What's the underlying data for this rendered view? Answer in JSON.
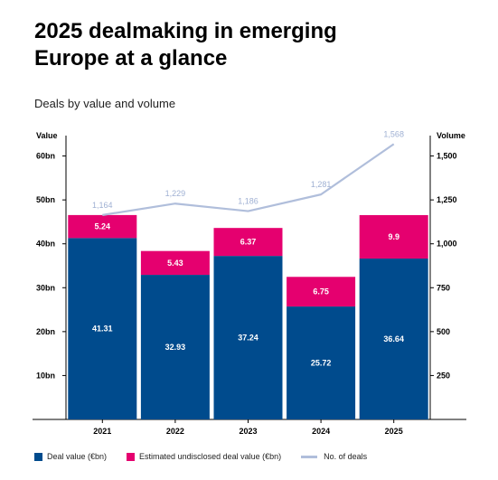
{
  "title_lines": [
    "2025 dealmaking in emerging",
    "Europe at a glance"
  ],
  "subtitle": "Deals by value and volume",
  "colors": {
    "deal_value": "#004b8d",
    "undisclosed": "#e5006f",
    "deals": "#b0bedb",
    "grid": "#000000"
  },
  "chart_data": {
    "type": "bar",
    "stacked": true,
    "categories": [
      "2021",
      "2022",
      "2023",
      "2024",
      "2025"
    ],
    "series": [
      {
        "name": "Deal value (€bn)",
        "values": [
          41.31,
          32.93,
          37.24,
          25.72,
          36.64
        ]
      },
      {
        "name": "Estimated undisclosed deal value (€bn)",
        "values": [
          5.24,
          5.43,
          6.37,
          6.75,
          9.9
        ]
      }
    ],
    "line_series": {
      "name": "No. of deals",
      "axis": "right",
      "values": [
        1164,
        1229,
        1186,
        1281,
        1568
      ],
      "labels": [
        "1,164",
        "1,229",
        "1,186",
        "1,281",
        "1,568"
      ]
    },
    "y_left": {
      "label": "Value",
      "ticks": [
        10,
        20,
        30,
        40,
        50,
        60
      ],
      "tick_labels": [
        "10bn",
        "20bn",
        "30bn",
        "40bn",
        "50bn",
        "60bn"
      ],
      "range": [
        0,
        63
      ]
    },
    "y_right": {
      "label": "Volume",
      "ticks": [
        250,
        500,
        750,
        1000,
        1250,
        1500
      ],
      "tick_labels": [
        "250",
        "500",
        "750",
        "1,000",
        "1,250",
        "1,500"
      ],
      "range": [
        0,
        1575
      ]
    },
    "gridlines": false,
    "legend_position": "bottom-left"
  }
}
